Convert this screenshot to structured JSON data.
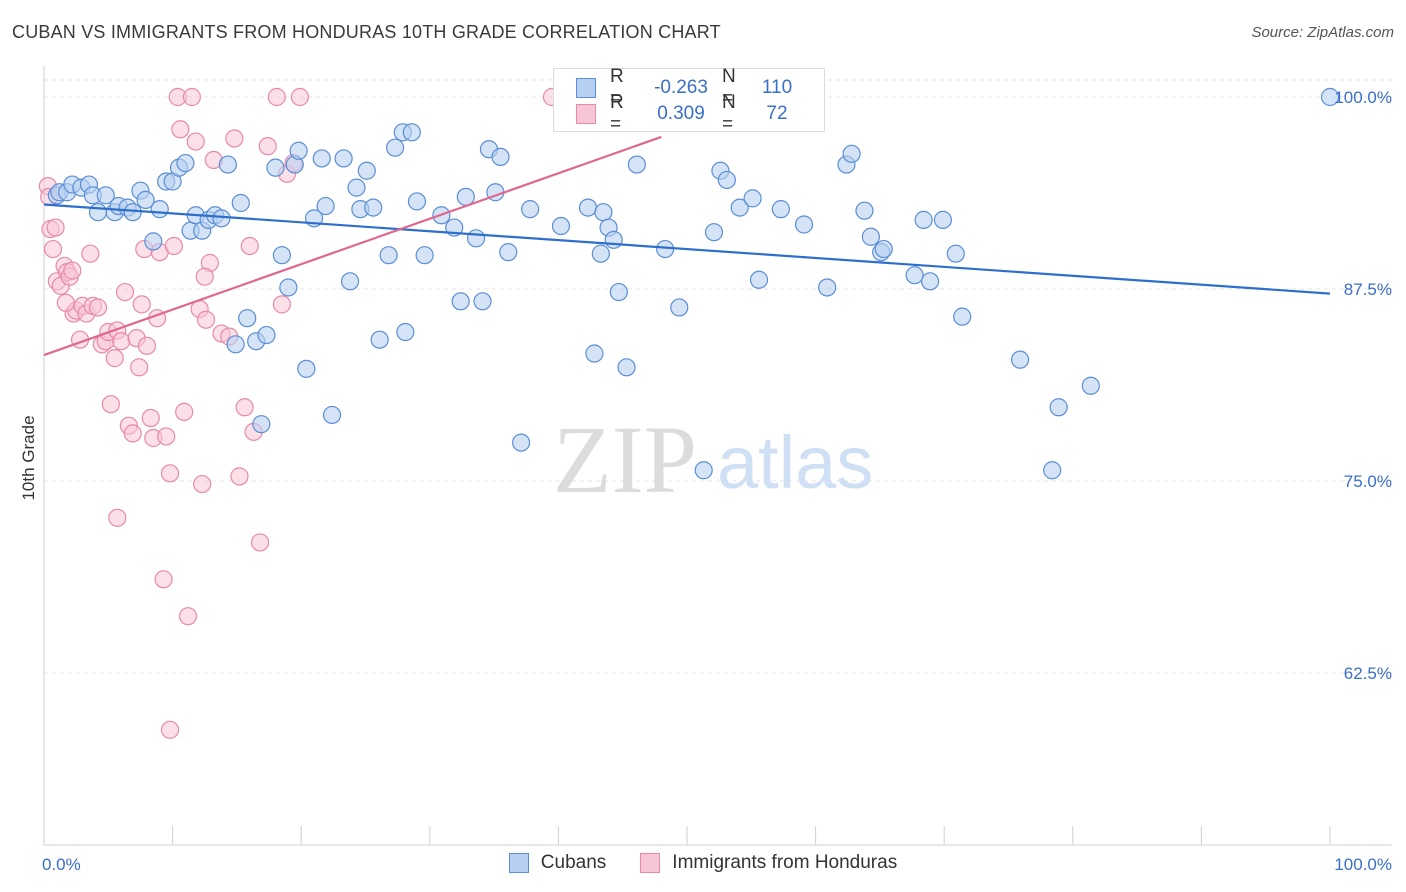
{
  "header": {
    "title": "CUBAN VS IMMIGRANTS FROM HONDURAS 10TH GRADE CORRELATION CHART",
    "source": "Source: ZipAtlas.com"
  },
  "watermark": {
    "zip": "ZIP",
    "atlas": "atlas"
  },
  "legend_top": {
    "rows": [
      {
        "r_label": "R =",
        "r_value": "-0.263",
        "n_label": "N =",
        "n_value": "110"
      },
      {
        "r_label": "R =",
        "r_value": "0.309",
        "n_label": "N =",
        "n_value": "72"
      }
    ]
  },
  "legend_bottom": {
    "items": [
      "Cubans",
      "Immigrants from Honduras"
    ]
  },
  "colors": {
    "blue_fill": "#b8d0f0",
    "blue_stroke": "#5b8ed6",
    "blue_line": "#2f6fcc",
    "pink_fill": "#f7c6d6",
    "pink_stroke": "#e889a9",
    "pink_line": "#e0678f",
    "tick_label": "#3a6fc9",
    "grid": "#e3e3e3"
  },
  "chart_data": {
    "type": "scatter",
    "title": "CUBAN VS IMMIGRANTS FROM HONDURAS 10TH GRADE CORRELATION CHART",
    "xlabel": "",
    "ylabel": "10th Grade",
    "xlim": [
      0,
      100
    ],
    "ylim": [
      51,
      102
    ],
    "x_tick_labels": [
      "0.0%",
      "100.0%"
    ],
    "y_ticks": [
      {
        "value": 100,
        "label": "100.0%"
      },
      {
        "value": 87.5,
        "label": "87.5%"
      },
      {
        "value": 75,
        "label": "75.0%"
      },
      {
        "value": 62.5,
        "label": "62.5%"
      }
    ],
    "grid": true,
    "legend_position": "top-center",
    "series": [
      {
        "name": "Cubans",
        "color": "#5b8ed6",
        "r": -0.263,
        "n": 110,
        "trend": {
          "x": [
            0,
            100
          ],
          "y": [
            93.0,
            87.2
          ]
        },
        "points": [
          [
            1,
            93.6
          ],
          [
            1.2,
            93.8
          ],
          [
            1.8,
            93.8
          ],
          [
            2.2,
            94.3
          ],
          [
            2.9,
            94.1
          ],
          [
            3.5,
            94.3
          ],
          [
            3.8,
            93.6
          ],
          [
            4.2,
            92.5
          ],
          [
            4.8,
            93.6
          ],
          [
            5.5,
            92.5
          ],
          [
            5.8,
            92.9
          ],
          [
            6.5,
            92.8
          ],
          [
            6.9,
            92.5
          ],
          [
            7.5,
            93.9
          ],
          [
            7.9,
            93.3
          ],
          [
            8.5,
            90.6
          ],
          [
            9.0,
            92.7
          ],
          [
            9.5,
            94.5
          ],
          [
            10.0,
            94.5
          ],
          [
            10.5,
            95.4
          ],
          [
            11.0,
            95.7
          ],
          [
            11.4,
            91.3
          ],
          [
            11.8,
            92.3
          ],
          [
            12.3,
            91.3
          ],
          [
            12.8,
            92.0
          ],
          [
            13.3,
            92.3
          ],
          [
            13.8,
            92.1
          ],
          [
            14.3,
            95.6
          ],
          [
            14.9,
            83.9
          ],
          [
            15.3,
            93.1
          ],
          [
            15.8,
            85.6
          ],
          [
            16.5,
            84.1
          ],
          [
            16.9,
            78.7
          ],
          [
            17.3,
            84.5
          ],
          [
            18.0,
            95.4
          ],
          [
            18.5,
            89.7
          ],
          [
            19.0,
            87.6
          ],
          [
            19.5,
            95.6
          ],
          [
            19.8,
            96.5
          ],
          [
            20.4,
            82.3
          ],
          [
            21.0,
            92.1
          ],
          [
            21.6,
            96.0
          ],
          [
            21.9,
            92.9
          ],
          [
            22.4,
            79.3
          ],
          [
            23.3,
            96.0
          ],
          [
            23.8,
            88.0
          ],
          [
            24.3,
            94.1
          ],
          [
            24.6,
            92.7
          ],
          [
            25.1,
            95.2
          ],
          [
            25.6,
            92.8
          ],
          [
            26.1,
            84.2
          ],
          [
            26.8,
            89.7
          ],
          [
            27.3,
            96.7
          ],
          [
            27.9,
            97.7
          ],
          [
            28.1,
            84.7
          ],
          [
            28.6,
            97.7
          ],
          [
            29.0,
            93.2
          ],
          [
            29.6,
            89.7
          ],
          [
            30.9,
            92.3
          ],
          [
            31.9,
            91.5
          ],
          [
            32.4,
            86.7
          ],
          [
            32.8,
            93.5
          ],
          [
            33.6,
            90.8
          ],
          [
            34.1,
            86.7
          ],
          [
            34.6,
            96.6
          ],
          [
            35.1,
            93.8
          ],
          [
            35.5,
            96.1
          ],
          [
            36.1,
            89.9
          ],
          [
            37.1,
            77.5
          ],
          [
            37.8,
            92.7
          ],
          [
            40.2,
            91.6
          ],
          [
            42.3,
            92.8
          ],
          [
            42.8,
            83.3
          ],
          [
            43.3,
            89.8
          ],
          [
            43.5,
            92.5
          ],
          [
            43.9,
            91.5
          ],
          [
            44.3,
            90.7
          ],
          [
            44.7,
            87.3
          ],
          [
            45.3,
            82.4
          ],
          [
            46.1,
            95.6
          ],
          [
            48.3,
            90.1
          ],
          [
            49.4,
            86.3
          ],
          [
            51.3,
            75.7
          ],
          [
            52.1,
            91.2
          ],
          [
            52.6,
            95.2
          ],
          [
            53.1,
            94.6
          ],
          [
            54.1,
            92.8
          ],
          [
            55.1,
            93.4
          ],
          [
            55.6,
            88.1
          ],
          [
            57.3,
            92.7
          ],
          [
            59.1,
            91.7
          ],
          [
            60.9,
            87.6
          ],
          [
            62.4,
            95.6
          ],
          [
            62.8,
            96.3
          ],
          [
            63.8,
            92.6
          ],
          [
            64.3,
            90.9
          ],
          [
            65.1,
            89.9
          ],
          [
            65.3,
            90.1
          ],
          [
            67.7,
            88.4
          ],
          [
            68.4,
            92.0
          ],
          [
            68.9,
            88.0
          ],
          [
            69.9,
            92.0
          ],
          [
            70.9,
            89.8
          ],
          [
            71.4,
            85.7
          ],
          [
            75.9,
            82.9
          ],
          [
            78.4,
            75.7
          ],
          [
            78.9,
            79.8
          ],
          [
            81.4,
            81.2
          ],
          [
            100,
            100
          ]
        ]
      },
      {
        "name": "Immigrants from Honduras",
        "color": "#e889a9",
        "r": 0.309,
        "n": 72,
        "trend": {
          "x": [
            0,
            48
          ],
          "y": [
            83.2,
            97.4
          ]
        },
        "points": [
          [
            0.3,
            94.2
          ],
          [
            0.4,
            93.5
          ],
          [
            0.5,
            91.4
          ],
          [
            0.7,
            90.1
          ],
          [
            0.9,
            91.5
          ],
          [
            1.0,
            88.0
          ],
          [
            1.3,
            87.7
          ],
          [
            1.6,
            89.0
          ],
          [
            1.8,
            88.6
          ],
          [
            2.0,
            88.3
          ],
          [
            2.3,
            85.9
          ],
          [
            2.5,
            86.1
          ],
          [
            2.8,
            84.2
          ],
          [
            3.0,
            86.4
          ],
          [
            3.3,
            85.9
          ],
          [
            3.6,
            89.8
          ],
          [
            3.8,
            86.4
          ],
          [
            4.2,
            86.3
          ],
          [
            4.5,
            83.9
          ],
          [
            4.8,
            84.1
          ],
          [
            5.0,
            84.7
          ],
          [
            5.2,
            80.0
          ],
          [
            5.5,
            83.0
          ],
          [
            5.7,
            84.8
          ],
          [
            6.0,
            84.1
          ],
          [
            6.3,
            87.3
          ],
          [
            6.6,
            78.6
          ],
          [
            6.9,
            78.1
          ],
          [
            7.2,
            84.3
          ],
          [
            7.4,
            82.4
          ],
          [
            7.6,
            86.5
          ],
          [
            7.8,
            90.1
          ],
          [
            8.0,
            83.8
          ],
          [
            8.3,
            79.1
          ],
          [
            8.5,
            77.8
          ],
          [
            8.8,
            85.6
          ],
          [
            9.0,
            89.9
          ],
          [
            9.3,
            68.6
          ],
          [
            9.5,
            77.9
          ],
          [
            9.8,
            75.5
          ],
          [
            10.1,
            90.3
          ],
          [
            10.4,
            100
          ],
          [
            10.6,
            97.9
          ],
          [
            10.9,
            79.5
          ],
          [
            11.2,
            66.2
          ],
          [
            11.5,
            100
          ],
          [
            11.8,
            97.1
          ],
          [
            12.1,
            86.2
          ],
          [
            12.3,
            74.8
          ],
          [
            12.6,
            85.5
          ],
          [
            12.9,
            89.2
          ],
          [
            13.2,
            95.9
          ],
          [
            13.8,
            84.6
          ],
          [
            14.4,
            84.4
          ],
          [
            14.8,
            97.3
          ],
          [
            15.2,
            75.3
          ],
          [
            15.6,
            79.8
          ],
          [
            16.0,
            90.3
          ],
          [
            16.3,
            78.2
          ],
          [
            16.8,
            71.0
          ],
          [
            17.4,
            96.8
          ],
          [
            18.1,
            100
          ],
          [
            18.5,
            86.5
          ],
          [
            18.9,
            95.0
          ],
          [
            19.4,
            95.7
          ],
          [
            19.9,
            100
          ],
          [
            9.8,
            58.8
          ],
          [
            5.7,
            72.6
          ],
          [
            2.2,
            88.7
          ],
          [
            1.7,
            86.6
          ],
          [
            12.5,
            88.3
          ],
          [
            39.5,
            100
          ]
        ]
      }
    ]
  }
}
